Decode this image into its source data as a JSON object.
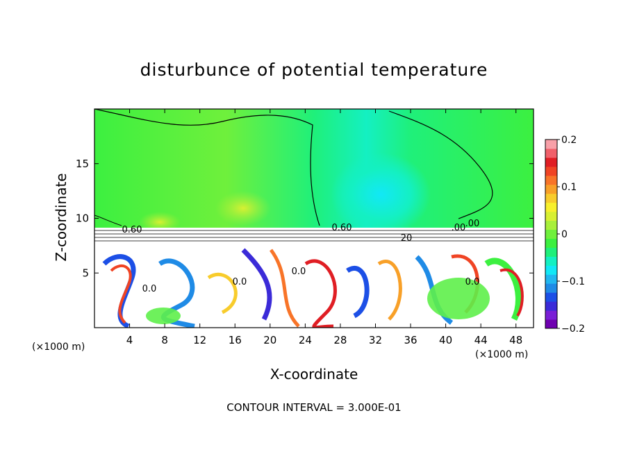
{
  "chart_data": {
    "type": "heatmap",
    "title": "disturbunce of potential temperature",
    "xlabel": "X-coordinate",
    "ylabel": "Z-coordinate",
    "x_unit_left": "(×1000 m)",
    "x_unit_right": "(×1000 m)",
    "footnote": "CONTOUR INTERVAL = 3.000E-01",
    "xlim": [
      0,
      50
    ],
    "ylim": [
      0,
      20
    ],
    "x_ticks": [
      4,
      8,
      12,
      16,
      20,
      24,
      28,
      32,
      36,
      40,
      44,
      48
    ],
    "y_ticks": [
      5,
      10,
      15
    ],
    "colorbar": {
      "min": -0.2,
      "max": 0.2,
      "tick_values": [
        0.2,
        0.1,
        0,
        -0.1,
        -0.2
      ],
      "tick_labels": [
        "0.2",
        "0.1",
        "0",
        "−0.1",
        "−0.2"
      ]
    },
    "contour_labels": [
      "0.60",
      "0.60",
      ".00",
      ".00",
      "0.0",
      "0.0",
      "0.0",
      "0.0",
      "20"
    ]
  },
  "colors": {
    "colorbar_stops": [
      "#6f00b0",
      "#7a1fd6",
      "#3b2bd8",
      "#1c4fe6",
      "#1f8be6",
      "#21b7f0",
      "#12e8f6",
      "#14f0c2",
      "#1ff07a",
      "#3cf040",
      "#6ff03c",
      "#a8f03a",
      "#d8f032",
      "#f8f02c",
      "#f8cc2c",
      "#f8a028",
      "#f87428",
      "#f04424",
      "#e01e24",
      "#f0606a",
      "#f8a0a8"
    ],
    "upper_field": "#5ef04a",
    "blue_core": "#22e4f8",
    "white_region": "#ffffff"
  }
}
